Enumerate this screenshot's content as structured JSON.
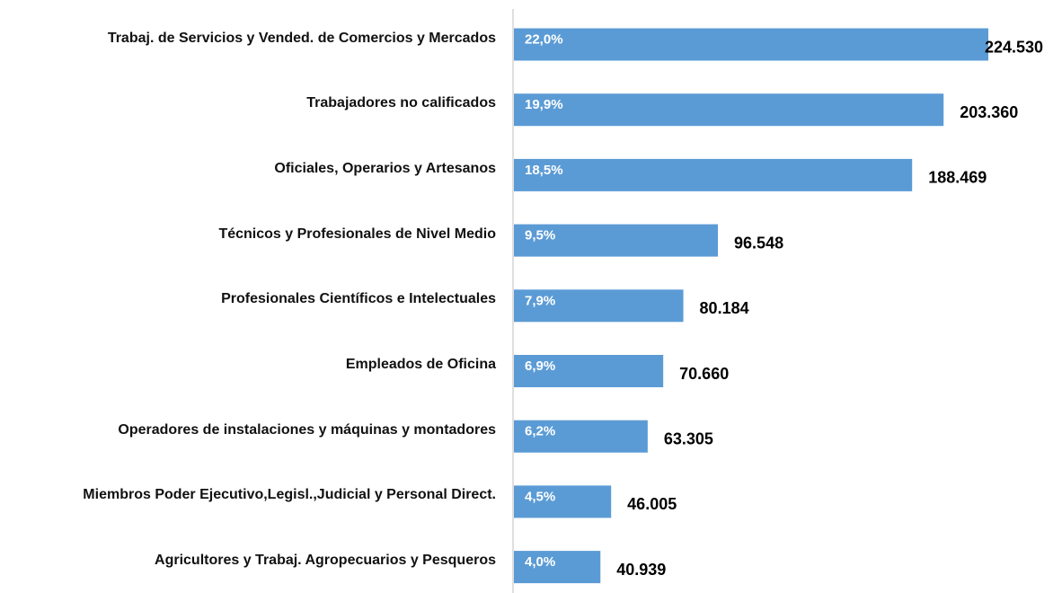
{
  "chart_data": {
    "type": "bar",
    "orientation": "horizontal",
    "categories": [
      "Trabaj. de Servicios y Vended. de Comercios y Mercados",
      "Trabajadores no calificados",
      "Oficiales, Operarios y Artesanos",
      "Técnicos y Profesionales de Nivel Medio",
      "Profesionales Científicos e Intelectuales",
      "Empleados de Oficina",
      "Operadores de instalaciones y máquinas y montadores",
      "Miembros Poder Ejecutivo,Legisl.,Judicial y Personal Direct.",
      "Agricultores y Trabaj. Agropecuarios y Pesqueros"
    ],
    "values": [
      224530,
      203360,
      188469,
      96548,
      80184,
      70660,
      63305,
      46005,
      40939
    ],
    "value_labels": [
      "224.530",
      "203.360",
      "188.469",
      "96.548",
      "80.184",
      "70.660",
      "63.305",
      "46.005",
      "40.939"
    ],
    "share_labels": [
      "22,0%",
      "19,9%",
      "18,5%",
      "9,5%",
      "7,9%",
      "6,9%",
      "6,2%",
      "4,5%",
      "4,0%"
    ],
    "color": "#5b9bd5"
  }
}
